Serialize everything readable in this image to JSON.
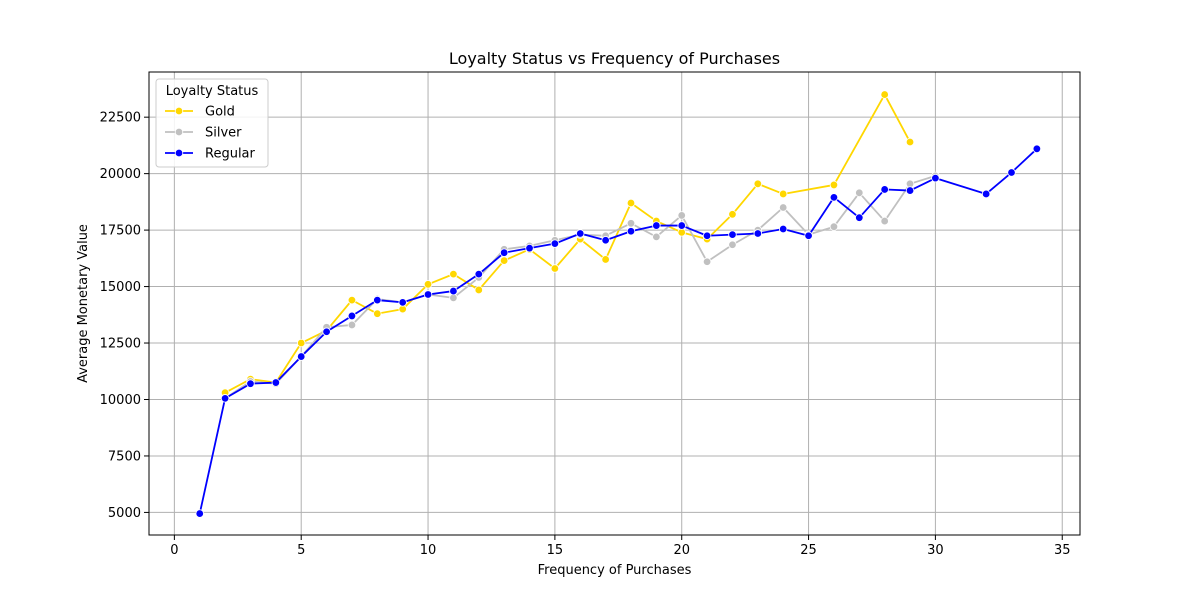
{
  "chart_data": {
    "type": "line",
    "title": "Loyalty Status vs Frequency of Purchases",
    "xlabel": "Frequency of Purchases",
    "ylabel": "Average Monetary Value",
    "xlim": [
      -1,
      35.7
    ],
    "ylim": [
      4000,
      24500
    ],
    "xticks": [
      0,
      5,
      10,
      15,
      20,
      25,
      30,
      35
    ],
    "yticks": [
      5000,
      7500,
      10000,
      12500,
      15000,
      17500,
      20000,
      22500
    ],
    "grid": true,
    "legend": {
      "title": "Loyalty Status",
      "position": "top-left"
    },
    "series": [
      {
        "name": "Gold",
        "color": "#FFD700",
        "points": [
          [
            2,
            10300
          ],
          [
            3,
            10900
          ],
          [
            4,
            10750
          ],
          [
            5,
            12500
          ],
          [
            6,
            13050
          ],
          [
            7,
            14400
          ],
          [
            8,
            13800
          ],
          [
            9,
            14000
          ],
          [
            10,
            15100
          ],
          [
            11,
            15550
          ],
          [
            12,
            14850
          ],
          [
            13,
            16150
          ],
          [
            14,
            16650
          ],
          [
            15,
            15800
          ],
          [
            16,
            17100
          ],
          [
            17,
            16200
          ],
          [
            18,
            18700
          ],
          [
            19,
            17900
          ],
          [
            20,
            17400
          ],
          [
            21,
            17100
          ],
          [
            22,
            18200
          ],
          [
            23,
            19550
          ],
          [
            24,
            19100
          ],
          [
            26,
            19500
          ],
          [
            28,
            23500
          ],
          [
            29,
            21400
          ]
        ]
      },
      {
        "name": "Silver",
        "color": "#C0C0C0",
        "points": [
          [
            2,
            10050
          ],
          [
            3,
            10800
          ],
          [
            4,
            10700
          ],
          [
            5,
            11900
          ],
          [
            6,
            13200
          ],
          [
            7,
            13300
          ],
          [
            8,
            14450
          ],
          [
            9,
            14300
          ],
          [
            10,
            14650
          ],
          [
            11,
            14500
          ],
          [
            12,
            15400
          ],
          [
            13,
            16650
          ],
          [
            14,
            16800
          ],
          [
            15,
            17050
          ],
          [
            16,
            17300
          ],
          [
            17,
            17250
          ],
          [
            18,
            17800
          ],
          [
            19,
            17200
          ],
          [
            20,
            18150
          ],
          [
            21,
            16100
          ],
          [
            22,
            16850
          ],
          [
            23,
            17500
          ],
          [
            24,
            18500
          ],
          [
            25,
            17300
          ],
          [
            26,
            17650
          ],
          [
            27,
            19150
          ],
          [
            28,
            17900
          ],
          [
            29,
            19550
          ],
          [
            30,
            19900
          ]
        ]
      },
      {
        "name": "Regular",
        "color": "#0000FF",
        "points": [
          [
            1,
            4950
          ],
          [
            2,
            10050
          ],
          [
            3,
            10700
          ],
          [
            4,
            10750
          ],
          [
            5,
            11900
          ],
          [
            6,
            13000
          ],
          [
            7,
            13700
          ],
          [
            8,
            14400
          ],
          [
            9,
            14300
          ],
          [
            10,
            14650
          ],
          [
            11,
            14800
          ],
          [
            12,
            15550
          ],
          [
            13,
            16500
          ],
          [
            14,
            16700
          ],
          [
            15,
            16900
          ],
          [
            16,
            17350
          ],
          [
            17,
            17050
          ],
          [
            18,
            17450
          ],
          [
            19,
            17700
          ],
          [
            20,
            17700
          ],
          [
            21,
            17250
          ],
          [
            22,
            17300
          ],
          [
            23,
            17350
          ],
          [
            24,
            17550
          ],
          [
            25,
            17250
          ],
          [
            26,
            18950
          ],
          [
            27,
            18050
          ],
          [
            28,
            19300
          ],
          [
            29,
            19250
          ],
          [
            30,
            19800
          ],
          [
            32,
            19100
          ],
          [
            33,
            20050
          ],
          [
            34,
            21100
          ]
        ]
      }
    ]
  }
}
